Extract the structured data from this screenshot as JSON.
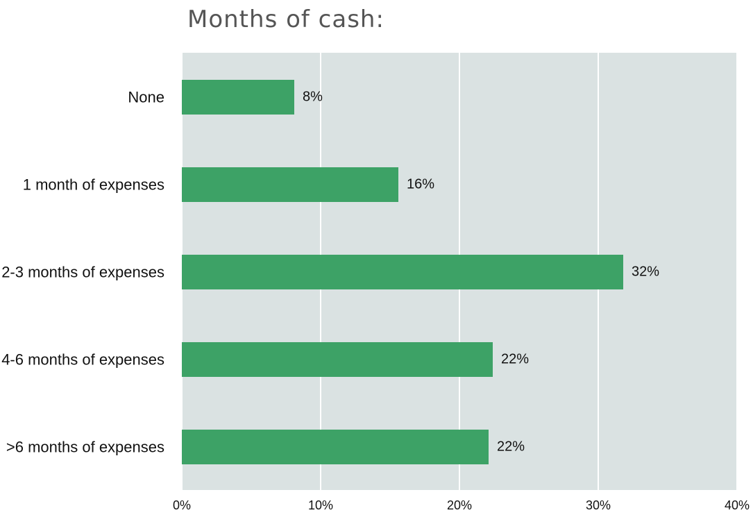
{
  "chart_data": {
    "type": "bar",
    "orientation": "horizontal",
    "title": "Months of cash:",
    "categories": [
      "None",
      "1 month of expenses",
      "2-3 months of expenses",
      "4-6 months of expenses",
      ">6 months of expenses"
    ],
    "values": [
      8.1,
      15.6,
      31.8,
      22.4,
      22.1
    ],
    "value_labels": [
      "8%",
      "16%",
      "32%",
      "22%",
      "22%"
    ],
    "color": "#3da266",
    "xlim": [
      0,
      40
    ],
    "xticks": [
      {
        "value": 0,
        "label": "0%"
      },
      {
        "value": 10,
        "label": "10%"
      },
      {
        "value": 20,
        "label": "20%"
      },
      {
        "value": 30,
        "label": "30%"
      },
      {
        "value": 40,
        "label": "40%"
      }
    ],
    "grid": true
  }
}
